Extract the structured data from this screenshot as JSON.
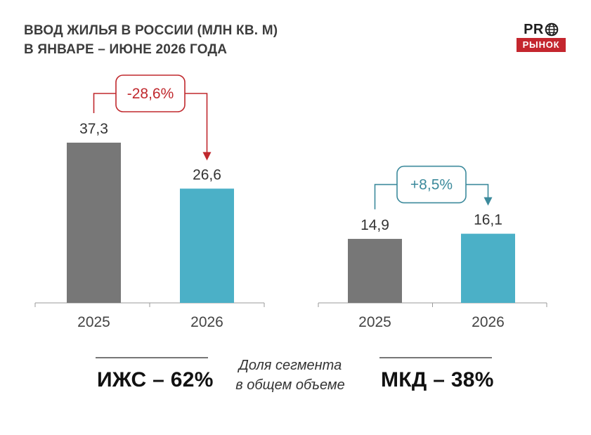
{
  "title": {
    "line1": "ВВОД ЖИЛЬЯ В РОССИИ (МЛН КВ. М)",
    "line2": "В ЯНВАРЕ – ИЮНЕ 2026 ГОДА"
  },
  "logo": {
    "top": "PR",
    "bottom": "РЫНОК",
    "icon": "globe-icon"
  },
  "colors": {
    "bar_2025": "#777777",
    "bar_2026": "#4bb0c7",
    "change_negative": "#c0282d",
    "change_positive": "#3c8a9c"
  },
  "chart_data": [
    {
      "type": "bar",
      "categories": [
        "2025",
        "2026"
      ],
      "values": [
        37.3,
        26.6
      ],
      "value_labels": [
        "37,3",
        "26,6"
      ],
      "change_label": "-28,6%",
      "ylim": [
        0,
        40
      ]
    },
    {
      "type": "bar",
      "categories": [
        "2025",
        "2026"
      ],
      "values": [
        14.9,
        16.1
      ],
      "value_labels": [
        "14,9",
        "16,1"
      ],
      "change_label": "+8,5%",
      "ylim": [
        0,
        40
      ]
    }
  ],
  "summary": {
    "left": "ИЖС – 62%",
    "note_line1": "Доля сегмента",
    "note_line2": "в общем объеме",
    "right": "МКД – 38%"
  }
}
